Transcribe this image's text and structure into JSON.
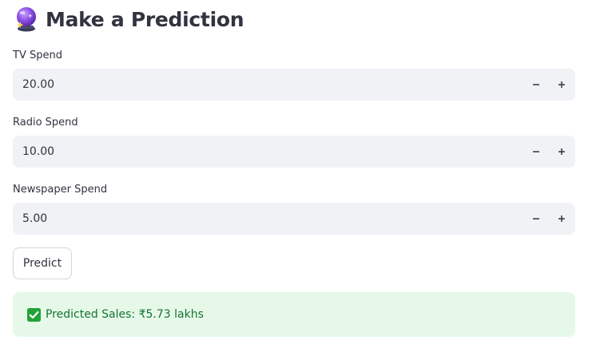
{
  "header": {
    "title": "Make a Prediction",
    "icon": "crystal-ball-icon"
  },
  "inputs": [
    {
      "label": "TV Spend",
      "value": "20.00"
    },
    {
      "label": "Radio Spend",
      "value": "10.00"
    },
    {
      "label": "Newspaper Spend",
      "value": "5.00"
    }
  ],
  "stepper": {
    "minus_icon": "minus-icon",
    "plus_icon": "plus-icon"
  },
  "predict_button": {
    "label": "Predict"
  },
  "result": {
    "icon": "check-mark-icon",
    "text": "Predicted Sales: ₹5.73 lakhs"
  },
  "colors": {
    "input_background": "#f0f2f6",
    "text": "#31333f",
    "success_background": "#e6f9e9",
    "success_text": "#177233",
    "check_green": "#21a336"
  }
}
